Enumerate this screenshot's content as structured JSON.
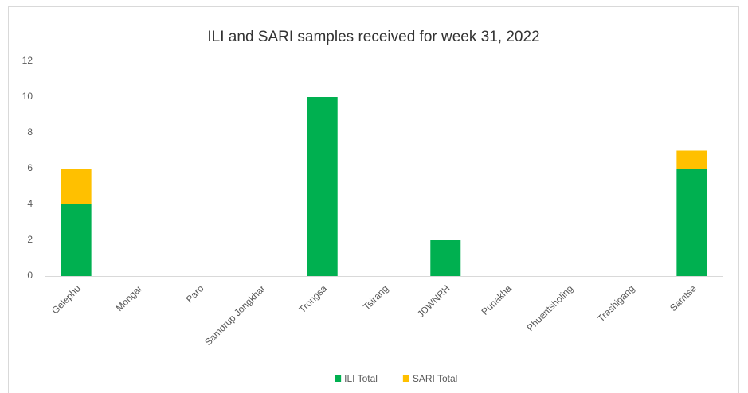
{
  "chart_data": {
    "type": "stacked_bar",
    "title": "ILI and SARI samples received for week 31, 2022",
    "categories": [
      "Gelephu",
      "Mongar",
      "Paro",
      "Samdrup Jongkhar",
      "Trongsa",
      "Tsirang",
      "JDWNRH",
      "Punakha",
      "Phuentsholing",
      "Trashigang",
      "Samtse"
    ],
    "series": [
      {
        "name": "ILI Total",
        "color": "#00b050",
        "values": [
          4,
          0,
          0,
          0,
          10,
          0,
          2,
          0,
          0,
          0,
          6
        ]
      },
      {
        "name": "SARI Total",
        "color": "#ffc000",
        "values": [
          2,
          0,
          0,
          0,
          0,
          0,
          0,
          0,
          0,
          0,
          1
        ]
      }
    ],
    "ylim": [
      0,
      12
    ],
    "yticks": [
      0,
      2,
      4,
      6,
      8,
      10,
      12
    ],
    "legend": "bottom"
  }
}
